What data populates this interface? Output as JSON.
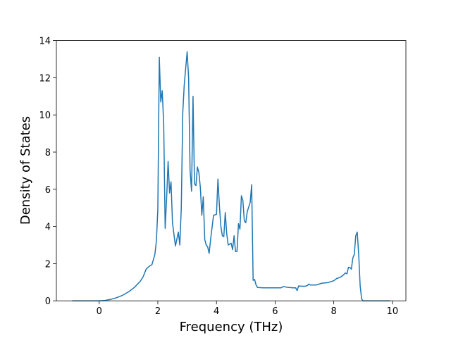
{
  "chart_data": {
    "type": "line",
    "xlabel": "Frequency (THz)",
    "ylabel": "Density of States",
    "xlim": [
      -1.46,
      10.46
    ],
    "ylim": [
      0,
      14
    ],
    "xticks": [
      0,
      2,
      4,
      6,
      8,
      10
    ],
    "yticks": [
      0,
      2,
      4,
      6,
      8,
      10,
      12,
      14
    ],
    "grid": false,
    "x": [
      -0.92,
      -0.5,
      0,
      0.2,
      0.4,
      0.6,
      0.8,
      1.0,
      1.2,
      1.4,
      1.5,
      1.6,
      1.7,
      1.8,
      1.9,
      1.95,
      2.0,
      2.05,
      2.1,
      2.15,
      2.2,
      2.25,
      2.3,
      2.35,
      2.4,
      2.45,
      2.5,
      2.6,
      2.7,
      2.75,
      2.8,
      2.85,
      2.9,
      2.95,
      3.0,
      3.05,
      3.1,
      3.15,
      3.2,
      3.25,
      3.3,
      3.35,
      3.4,
      3.45,
      3.5,
      3.55,
      3.6,
      3.65,
      3.7,
      3.75,
      3.8,
      3.9,
      4.0,
      4.05,
      4.1,
      4.15,
      4.2,
      4.25,
      4.3,
      4.35,
      4.4,
      4.5,
      4.55,
      4.6,
      4.65,
      4.7,
      4.75,
      4.8,
      4.85,
      4.9,
      4.95,
      5.0,
      5.05,
      5.15,
      5.2,
      5.25,
      5.3,
      5.35,
      5.4,
      5.6,
      6.0,
      6.2,
      6.3,
      6.4,
      6.6,
      6.7,
      6.75,
      6.8,
      7.0,
      7.1,
      7.15,
      7.2,
      7.4,
      7.6,
      7.8,
      8.0,
      8.1,
      8.2,
      8.3,
      8.4,
      8.45,
      8.5,
      8.55,
      8.6,
      8.65,
      8.7,
      8.75,
      8.8,
      8.85,
      8.9,
      8.95,
      9.0,
      9.92
    ],
    "series": [
      {
        "color": "#1f77b4",
        "values": [
          0,
          0,
          0,
          0.02,
          0.08,
          0.17,
          0.3,
          0.48,
          0.72,
          1.05,
          1.3,
          1.7,
          1.85,
          1.95,
          2.5,
          3.2,
          4.9,
          13.1,
          10.7,
          11.3,
          9.5,
          3.9,
          5.5,
          7.5,
          5.8,
          6.4,
          4.2,
          2.95,
          3.7,
          3.0,
          5.0,
          10.1,
          11.6,
          12.5,
          13.4,
          12.0,
          7.0,
          5.9,
          11.0,
          6.3,
          6.2,
          7.2,
          6.9,
          6.1,
          4.6,
          5.6,
          3.3,
          3.0,
          2.9,
          2.55,
          3.3,
          4.6,
          4.65,
          6.55,
          5.1,
          4.0,
          3.5,
          3.45,
          4.75,
          3.6,
          3.0,
          3.1,
          2.75,
          3.5,
          2.65,
          2.65,
          4.15,
          3.85,
          5.65,
          5.4,
          4.3,
          4.2,
          4.8,
          5.3,
          6.25,
          1.1,
          1.15,
          0.85,
          0.72,
          0.7,
          0.7,
          0.7,
          0.77,
          0.73,
          0.7,
          0.7,
          0.55,
          0.8,
          0.78,
          0.82,
          0.9,
          0.85,
          0.85,
          0.95,
          0.98,
          1.08,
          1.2,
          1.25,
          1.35,
          1.5,
          1.45,
          1.8,
          1.8,
          1.7,
          2.3,
          2.5,
          3.5,
          3.7,
          2.5,
          0.8,
          0.1,
          0,
          0
        ]
      }
    ]
  }
}
